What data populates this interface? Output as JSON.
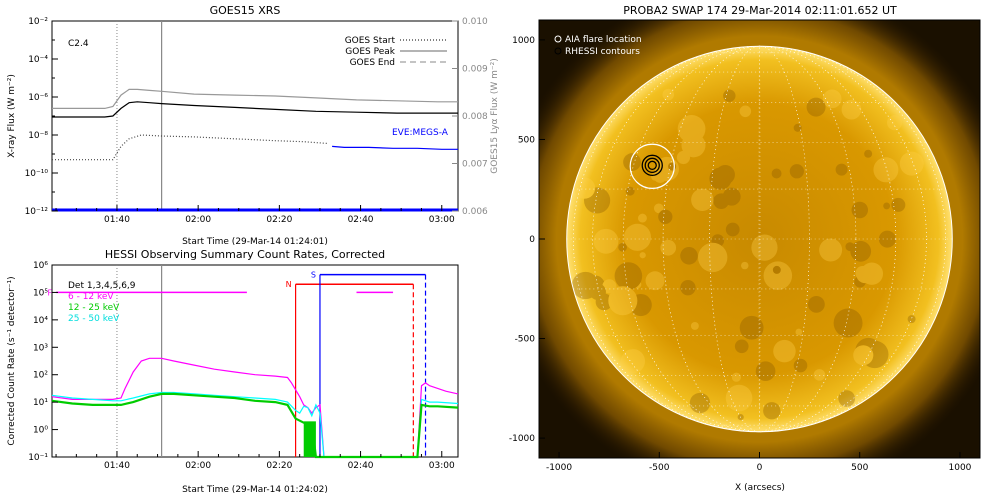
{
  "chart_data": [
    {
      "type": "line",
      "title": "GOES15 XRS",
      "xlabel": "Start Time (29-Mar-14 01:24:01)",
      "ylabel": "X-ray Flux (W m⁻²)",
      "ylabel_right": "GOES15 Lyα Flux (W m⁻²)",
      "annotation": "C2.4",
      "y_scale": "log",
      "xticks": [
        "01:40",
        "02:00",
        "02:20",
        "02:40",
        "03:00"
      ],
      "yticks": [
        "10⁻²",
        "10⁻⁴",
        "10⁻⁶",
        "10⁻⁸",
        "10⁻¹⁰",
        "10⁻¹²"
      ],
      "yticks_right": [
        "0.010",
        "0.009",
        "0.008",
        "0.007",
        "0.006"
      ],
      "legend_position": "top-right",
      "legend": [
        {
          "label": "GOES Start",
          "style": "dotted"
        },
        {
          "label": "GOES Peak",
          "style": "solid"
        },
        {
          "label": "GOES End",
          "style": "dashed"
        }
      ],
      "eve_label": "EVE:MEGS-A",
      "ylim": [
        -12,
        -2
      ],
      "ylim_right": [
        0.006,
        0.01
      ],
      "xlim_min": [
        0,
        100
      ],
      "markers_min": {
        "goes_start": 16,
        "goes_peak": 27
      },
      "series": [
        {
          "color": "#999999",
          "x": [
            0,
            13,
            15,
            17,
            19,
            21,
            24,
            27,
            35,
            45,
            55,
            65,
            75,
            85,
            95,
            100
          ],
          "y": [
            -6.6,
            -6.6,
            -6.5,
            -5.9,
            -5.6,
            -5.6,
            -5.65,
            -5.7,
            -5.85,
            -5.9,
            -5.95,
            -6.05,
            -6.15,
            -6.2,
            -6.25,
            -6.25
          ]
        },
        {
          "color": "#000000",
          "x": [
            0,
            13,
            15,
            17,
            19,
            21,
            24,
            27,
            35,
            45,
            55,
            65,
            75,
            85,
            95,
            100
          ],
          "y": [
            -7.05,
            -7.05,
            -7.0,
            -6.6,
            -6.3,
            -6.25,
            -6.3,
            -6.35,
            -6.45,
            -6.55,
            -6.65,
            -6.75,
            -6.8,
            -6.85,
            -6.85,
            -6.85
          ]
        },
        {
          "color": "#444444",
          "x": [
            0,
            5,
            10,
            15,
            17,
            19,
            22,
            27,
            35,
            45,
            55,
            62,
            65,
            68
          ],
          "y": [
            -9.3,
            -9.3,
            -9.3,
            -9.3,
            -8.6,
            -8.2,
            -8.0,
            -8.05,
            -8.1,
            -8.2,
            -8.3,
            -8.35,
            -8.4,
            -8.45
          ]
        },
        {
          "color": "#0000ff",
          "x": [
            69,
            72,
            78,
            84,
            90,
            96,
            100
          ],
          "y": [
            -8.6,
            -8.65,
            -8.65,
            -8.7,
            -8.7,
            -8.75,
            -8.75
          ]
        },
        {
          "color": "#0000ff",
          "x": [
            0,
            100
          ],
          "y": [
            -11.95,
            -11.95
          ]
        }
      ]
    },
    {
      "type": "line",
      "title": "HESSI Observing Summary Count Rates, Corrected",
      "xlabel": "Start Time (29-Mar-14 01:24:02)",
      "ylabel": "Corrected Count Rate (s⁻¹ detector⁻¹)",
      "y_scale": "log",
      "xticks": [
        "01:40",
        "02:00",
        "02:20",
        "02:40",
        "03:00"
      ],
      "yticks": [
        "10⁶",
        "10⁵",
        "10⁴",
        "10³",
        "10²",
        "10¹",
        "10⁰",
        "10⁻¹"
      ],
      "ylim": [
        -1,
        6
      ],
      "legend_position": "top-left",
      "legend": [
        {
          "label": "Det 1,3,4,5,6,9",
          "color": "#000000"
        },
        {
          "label": "6 - 12 keV",
          "color": "#ff00ff"
        },
        {
          "label": "12 - 25 keV",
          "color": "#00cc00"
        },
        {
          "label": "25 - 50 keV",
          "color": "#00ffff"
        }
      ],
      "flags": [
        {
          "label": "F",
          "color": "#ff00ff",
          "x_min": [
            1,
            48,
            75,
            84
          ],
          "level": 5.0
        },
        {
          "label": "N",
          "color": "#ff0000",
          "x_min": [
            60,
            89
          ],
          "level": 5.3
        },
        {
          "label": "S",
          "color": "#0000ff",
          "x_min": [
            66,
            92
          ],
          "level": 5.65
        }
      ],
      "markers_min": {
        "goes_start": 16,
        "goes_peak": 27
      },
      "series": [
        {
          "name": "6 - 12 keV",
          "color": "#ff00ff",
          "x": [
            0,
            5,
            10,
            15,
            17,
            18,
            20,
            22,
            24,
            27,
            30,
            35,
            40,
            45,
            50,
            55,
            58,
            59,
            61,
            62,
            63,
            64,
            65,
            66,
            67,
            90,
            91,
            92,
            93,
            95,
            97,
            100
          ],
          "y": [
            1.2,
            1.1,
            1.1,
            1.1,
            1.15,
            1.5,
            2.1,
            2.5,
            2.6,
            2.6,
            2.5,
            2.35,
            2.2,
            2.1,
            2.0,
            1.95,
            1.9,
            1.7,
            1.2,
            0.9,
            0.8,
            0.6,
            0.8,
            0.9,
            -1,
            -1,
            1.6,
            1.7,
            1.6,
            1.5,
            1.4,
            1.3
          ]
        },
        {
          "name": "25 - 50 keV",
          "color": "#00ffff",
          "x": [
            0,
            5,
            10,
            15,
            17,
            20,
            24,
            27,
            30,
            35,
            40,
            45,
            50,
            55,
            58,
            60,
            61,
            62,
            63,
            64,
            65,
            66,
            67,
            90,
            91,
            93,
            95,
            100
          ],
          "y": [
            1.25,
            1.15,
            1.1,
            1.05,
            1.05,
            1.15,
            1.3,
            1.35,
            1.35,
            1.3,
            1.25,
            1.2,
            1.15,
            1.1,
            1.0,
            0.7,
            0.6,
            0.85,
            0.8,
            0.5,
            0.9,
            0.6,
            -1,
            -1,
            1.1,
            1.0,
            1.0,
            0.95
          ]
        },
        {
          "name": "12 - 25 keV",
          "color": "#00cc00",
          "x": [
            0,
            5,
            10,
            15,
            17,
            20,
            24,
            27,
            30,
            35,
            40,
            45,
            50,
            55,
            58,
            60,
            62,
            64,
            65,
            90,
            91,
            93,
            95,
            100
          ],
          "y": [
            1.05,
            0.95,
            0.9,
            0.9,
            0.9,
            1.0,
            1.2,
            1.3,
            1.3,
            1.25,
            1.2,
            1.15,
            1.05,
            1.0,
            0.9,
            0.4,
            0.25,
            0.25,
            -1,
            -1,
            0.9,
            0.85,
            0.85,
            0.8
          ]
        }
      ]
    },
    {
      "type": "scatter",
      "title": "PROBA2 SWAP 174 29-Mar-2014 02:11:01.652 UT",
      "xlabel": "X (arcsecs)",
      "ylabel": "",
      "xlim": [
        -1100,
        1100
      ],
      "ylim": [
        -1100,
        1100
      ],
      "xticks": [
        -1000,
        -500,
        0,
        500,
        1000
      ],
      "yticks": [
        1000,
        500,
        0,
        -500,
        -1000
      ],
      "legend_position": "top-left",
      "legend": [
        "AIA flare location",
        "RHESSI contours"
      ],
      "solar_radius_arcsec": 965,
      "aia_flare": {
        "x": -535,
        "y": 365,
        "r": 110
      },
      "rhessi_contours": {
        "x": -535,
        "y": 370,
        "radii": [
          20,
          35,
          50
        ]
      }
    }
  ]
}
